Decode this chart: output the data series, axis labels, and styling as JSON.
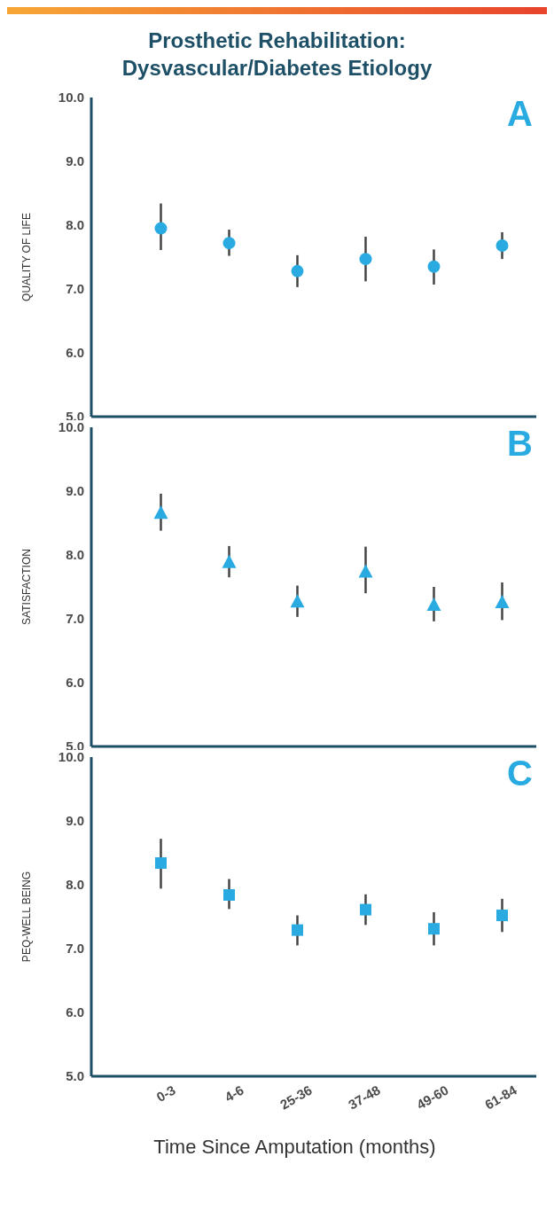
{
  "chart_data": [
    {
      "type": "scatter",
      "title": "Prosthetic Rehabilitation:\nDysvascular/Diabetes Etiology",
      "ylabel": "QUALITY OF LIFE",
      "annotations": [
        "A"
      ],
      "categories": [
        null,
        null,
        null,
        null,
        null,
        null
      ],
      "values": [
        7.95,
        7.72,
        7.28,
        7.47,
        7.35,
        7.68
      ],
      "errors": [
        [
          7.61,
          8.34
        ],
        [
          7.52,
          7.93
        ],
        [
          7.03,
          7.53
        ],
        [
          7.12,
          7.82
        ],
        [
          7.07,
          7.62
        ],
        [
          7.47,
          7.89
        ]
      ],
      "color": "#29abe2",
      "marker": "circle",
      "ylim": [
        5,
        10
      ],
      "yticks": [
        {
          "value": 5,
          "label": "5.0"
        },
        {
          "value": 6,
          "label": "6.0"
        },
        {
          "value": 7,
          "label": "7.0"
        },
        {
          "value": 8,
          "label": "8.0"
        },
        {
          "value": 9,
          "label": "9.0"
        },
        {
          "value": 10,
          "label": "10.0"
        }
      ],
      "tick_labels": "y"
    },
    {
      "type": "scatter",
      "ylabel": "SATISFACTION",
      "annotations": [
        "B"
      ],
      "categories": [
        null,
        null,
        null,
        null,
        null,
        null
      ],
      "values": [
        8.65,
        7.88,
        7.26,
        7.73,
        7.21,
        7.25
      ],
      "errors": [
        [
          8.38,
          8.96
        ],
        [
          7.65,
          8.14
        ],
        [
          7.03,
          7.52
        ],
        [
          7.4,
          8.13
        ],
        [
          6.96,
          7.5
        ],
        [
          6.98,
          7.57
        ]
      ],
      "color": "#29abe2",
      "marker": "triangle",
      "ylim": [
        5,
        10
      ],
      "yticks": [
        {
          "value": 5,
          "label": "5.0"
        },
        {
          "value": 6,
          "label": "6.0"
        },
        {
          "value": 7,
          "label": "7.0"
        },
        {
          "value": 8,
          "label": "8.0"
        },
        {
          "value": 9,
          "label": "9.0"
        },
        {
          "value": 10,
          "label": "10.0"
        }
      ],
      "tick_labels": "y"
    },
    {
      "type": "scatter",
      "ylabel": "PEQ-WELL BEING",
      "xlabel": "Time Since Amputation (months)",
      "annotations": [
        "C"
      ],
      "categories": [
        "0-3",
        "4-6",
        "25-36",
        "37-48",
        "49-60",
        "61-84"
      ],
      "values": [
        8.34,
        7.84,
        7.29,
        7.61,
        7.31,
        7.52
      ],
      "errors": [
        [
          7.94,
          8.72
        ],
        [
          7.62,
          8.09
        ],
        [
          7.05,
          7.52
        ],
        [
          7.37,
          7.85
        ],
        [
          7.05,
          7.57
        ],
        [
          7.26,
          7.78
        ]
      ],
      "color": "#29abe2",
      "marker": "square",
      "ylim": [
        5,
        10
      ],
      "yticks": [
        {
          "value": 5,
          "label": "5.0"
        },
        {
          "value": 6,
          "label": "6.0"
        },
        {
          "value": 7,
          "label": "7.0"
        },
        {
          "value": 8,
          "label": "8.0"
        },
        {
          "value": 9,
          "label": "9.0"
        },
        {
          "value": 10,
          "label": "10.0"
        }
      ]
    }
  ]
}
